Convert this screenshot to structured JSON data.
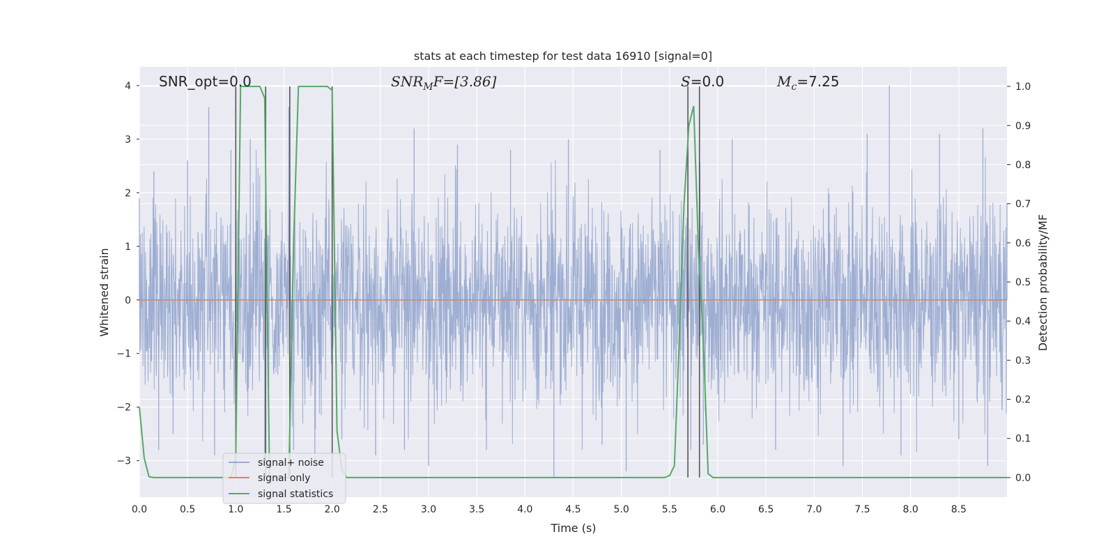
{
  "chart_data": {
    "type": "line",
    "title": "stats at each timestep for test data 16910 [signal=0]",
    "xlabel": "Time (s)",
    "ylabel": "Whitened strain",
    "y2label": "Detection probability/MF",
    "xlim": [
      0.0,
      9.0
    ],
    "ylim": [
      -3.68,
      4.35
    ],
    "y2lim": [
      -0.05,
      1.05
    ],
    "xticks": [
      "0.0",
      "0.5",
      "1.0",
      "1.5",
      "2.0",
      "2.5",
      "3.0",
      "3.5",
      "4.0",
      "4.5",
      "5.0",
      "5.5",
      "6.0",
      "6.5",
      "7.0",
      "7.5",
      "8.0",
      "8.5"
    ],
    "yticks": [
      "−3",
      "−2",
      "−1",
      "0",
      "1",
      "2",
      "3",
      "4"
    ],
    "y2ticks": [
      "0.0",
      "0.1",
      "0.2",
      "0.3",
      "0.4",
      "0.5",
      "0.6",
      "0.7",
      "0.8",
      "0.9",
      "1.0"
    ],
    "grid": true,
    "legend_position": "bottom-left",
    "annotations": {
      "snr_opt": "SNR_opt=0.0",
      "snr_mf_base": "SNR",
      "snr_mf_sub": "M",
      "snr_mf_rest": "F=[3.86]",
      "s_var": "S",
      "s_rest": "=0.0",
      "mc_base": "M",
      "mc_sub": "c",
      "mc_rest": "=7.25"
    },
    "series": [
      {
        "name": "signal+ noise",
        "color": "#9aabd0",
        "description_level": "noise envelope",
        "envelope_peaks": [
          {
            "x": 0.0,
            "y": 1.9
          },
          {
            "x": 0.15,
            "y": 2.4
          },
          {
            "x": 0.2,
            "y": -2.8
          },
          {
            "x": 0.35,
            "y": -2.5
          },
          {
            "x": 0.5,
            "y": 2.6
          },
          {
            "x": 0.72,
            "y": 3.6
          },
          {
            "x": 0.78,
            "y": -2.9
          },
          {
            "x": 0.95,
            "y": 2.8
          },
          {
            "x": 1.15,
            "y": 3.0
          },
          {
            "x": 1.3,
            "y": -3.0
          },
          {
            "x": 1.55,
            "y": 3.6
          },
          {
            "x": 1.6,
            "y": -2.8
          },
          {
            "x": 1.82,
            "y": -3.0
          },
          {
            "x": 2.0,
            "y": 2.7
          },
          {
            "x": 2.1,
            "y": -2.6
          },
          {
            "x": 2.45,
            "y": -2.9
          },
          {
            "x": 2.75,
            "y": -2.8
          },
          {
            "x": 2.85,
            "y": 3.2
          },
          {
            "x": 3.0,
            "y": -3.1
          },
          {
            "x": 3.3,
            "y": 2.9
          },
          {
            "x": 3.6,
            "y": -2.8
          },
          {
            "x": 3.85,
            "y": 2.8
          },
          {
            "x": 4.3,
            "y": -3.3
          },
          {
            "x": 4.45,
            "y": 3.0
          },
          {
            "x": 4.8,
            "y": -2.7
          },
          {
            "x": 5.05,
            "y": -3.2
          },
          {
            "x": 5.4,
            "y": 2.8
          },
          {
            "x": 5.72,
            "y": -2.8
          },
          {
            "x": 5.85,
            "y": -2.7
          },
          {
            "x": 6.15,
            "y": 3.0
          },
          {
            "x": 6.6,
            "y": -2.8
          },
          {
            "x": 7.3,
            "y": -3.1
          },
          {
            "x": 7.55,
            "y": 3.1
          },
          {
            "x": 7.78,
            "y": 4.0
          },
          {
            "x": 7.9,
            "y": -2.9
          },
          {
            "x": 8.3,
            "y": 3.1
          },
          {
            "x": 8.5,
            "y": -2.6
          },
          {
            "x": 8.75,
            "y": 3.2
          },
          {
            "x": 8.8,
            "y": -3.1
          },
          {
            "x": 9.0,
            "y": 1.8
          }
        ]
      },
      {
        "name": "signal only",
        "color": "#dd8452",
        "x": [
          0.0,
          9.0
        ],
        "y": [
          0.0,
          0.0
        ]
      },
      {
        "name": "signal statistics",
        "color": "#55a868",
        "axis": "right",
        "x": [
          0.0,
          0.05,
          0.1,
          0.15,
          0.95,
          1.0,
          1.05,
          1.1,
          1.25,
          1.3,
          1.35,
          1.55,
          1.6,
          1.65,
          1.95,
          2.0,
          2.05,
          2.1,
          2.15,
          5.45,
          5.5,
          5.55,
          5.6,
          5.65,
          5.7,
          5.75,
          5.8,
          5.85,
          5.9,
          5.95,
          6.0,
          9.0
        ],
        "y": [
          0.18,
          0.05,
          0.002,
          0.0,
          0.0,
          0.05,
          1.0,
          1.0,
          1.0,
          0.97,
          0.0,
          0.0,
          0.6,
          1.0,
          1.0,
          0.99,
          0.12,
          0.02,
          0.0,
          0.0,
          0.005,
          0.03,
          0.35,
          0.7,
          0.9,
          0.95,
          0.58,
          0.35,
          0.01,
          0.0,
          0.0,
          0.0
        ]
      }
    ],
    "vertical_lines": {
      "color": "#555555",
      "x": [
        1.0,
        1.31,
        1.56,
        2.0,
        5.69,
        5.81
      ]
    }
  }
}
